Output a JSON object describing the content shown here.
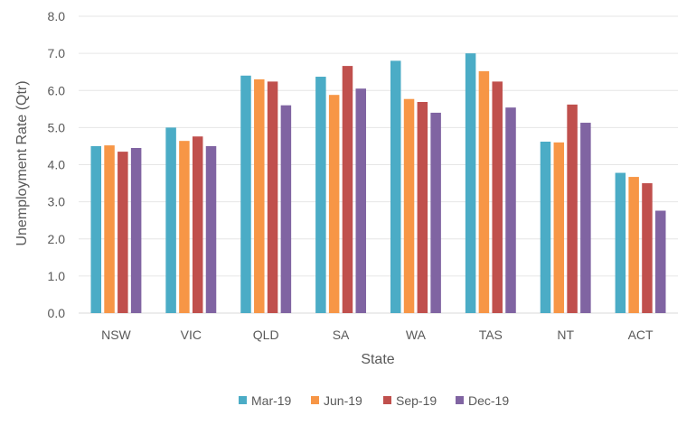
{
  "chart_data": {
    "type": "bar",
    "title": "",
    "xlabel": "State",
    "ylabel": "Unemployment Rate (Qtr)",
    "ylim": [
      0,
      8
    ],
    "yticks": [
      "0.0",
      "1.0",
      "2.0",
      "3.0",
      "4.0",
      "5.0",
      "6.0",
      "7.0",
      "8.0"
    ],
    "grid": true,
    "legend_position": "bottom",
    "categories": [
      "NSW",
      "VIC",
      "QLD",
      "SA",
      "WA",
      "TAS",
      "NT",
      "ACT"
    ],
    "series": [
      {
        "name": "Mar-19",
        "color": "#4bacc6",
        "values": [
          4.5,
          5.0,
          6.4,
          6.37,
          6.8,
          7.0,
          4.62,
          3.78
        ]
      },
      {
        "name": "Jun-19",
        "color": "#f79646",
        "values": [
          4.52,
          4.64,
          6.3,
          5.88,
          5.77,
          6.52,
          4.6,
          3.67
        ]
      },
      {
        "name": "Sep-19",
        "color": "#c0504d",
        "values": [
          4.35,
          4.76,
          6.24,
          6.66,
          5.69,
          6.24,
          5.62,
          3.5
        ]
      },
      {
        "name": "Dec-19",
        "color": "#8064a2",
        "values": [
          4.45,
          4.5,
          5.6,
          6.05,
          5.4,
          5.54,
          5.13,
          2.76
        ]
      }
    ]
  }
}
